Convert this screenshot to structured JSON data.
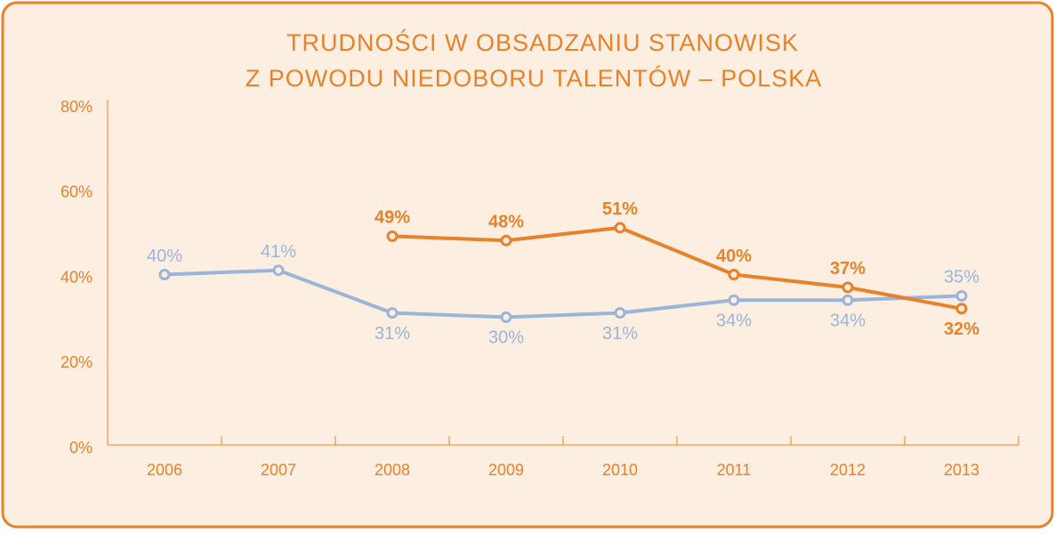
{
  "chart_data": {
    "type": "line",
    "title": [
      "TRUDNOŚCI W OBSADZANIU STANOWISK",
      "Z POWODU NIEDOBORU TALENTÓW – POLSKA"
    ],
    "categories": [
      "2006",
      "2007",
      "2008",
      "2009",
      "2010",
      "2011",
      "2012",
      "2013"
    ],
    "series": [
      {
        "color": "#9bb5d8",
        "values": [
          40,
          41,
          31,
          30,
          31,
          34,
          34,
          35
        ],
        "value_labels": [
          "40%",
          "41%",
          "31%",
          "30%",
          "31%",
          "34%",
          "34%",
          "35%"
        ]
      },
      {
        "color": "#e8822a",
        "values": [
          null,
          null,
          49,
          48,
          51,
          40,
          37,
          32
        ],
        "value_labels": [
          null,
          null,
          "49%",
          "48%",
          "51%",
          "40%",
          "37%",
          "32%"
        ]
      }
    ],
    "ylim": [
      0,
      80
    ],
    "yticks": [
      {
        "value": 0,
        "label": "0%"
      },
      {
        "value": 20,
        "label": "20%"
      },
      {
        "value": 40,
        "label": "40%"
      },
      {
        "value": 60,
        "label": "60%"
      },
      {
        "value": 80,
        "label": "80%"
      }
    ]
  }
}
